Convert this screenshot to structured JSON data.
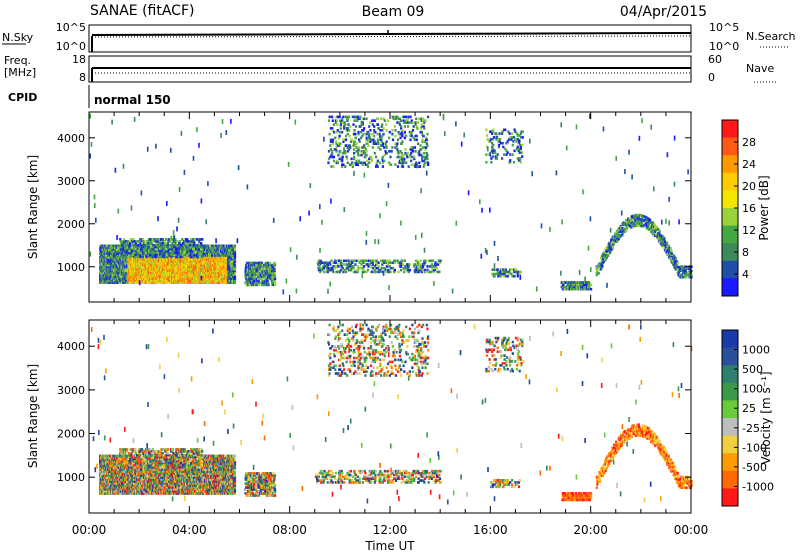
{
  "header": {
    "station": "SANAE (fitACF)",
    "beam": "Beam 09",
    "date": "04/Apr/2015"
  },
  "panels": {
    "nsky": {
      "label": "N.Sky",
      "left_ticks": [
        "10^5",
        "10^0"
      ],
      "right_ticks": [
        "10^5",
        "10^0"
      ],
      "right_label": "N.Search"
    },
    "freq": {
      "label_line1": "Freq.",
      "label_line2": "[MHz]",
      "left_ticks": [
        "18",
        "8"
      ],
      "right_ticks": [
        "60",
        "0"
      ],
      "right_label": "Nave"
    },
    "cpid": {
      "label": "CPID",
      "mode_text": "normal 150"
    }
  },
  "colorbars": {
    "power": {
      "title": "Power [dB]",
      "ticks": [
        "28",
        "24",
        "20",
        "16",
        "12",
        "8",
        "4"
      ],
      "colors": [
        "#ff1a1a",
        "#ff5a14",
        "#ff9a00",
        "#ffcc00",
        "#f2e600",
        "#9ad23a",
        "#44a844",
        "#3c8a5a",
        "#1f4fa8",
        "#1a1aff"
      ]
    },
    "velocity": {
      "title": "Velocity [m s⁻¹]",
      "ticks": [
        "1000",
        "500",
        "100",
        "25",
        "-25",
        "-100",
        "-500",
        "-1000"
      ],
      "colors": [
        "#1a3aa8",
        "#2a4f9c",
        "#2e7f6e",
        "#3a9a4a",
        "#6acb3a",
        "#bdbdbd",
        "#f0d040",
        "#ff9a00",
        "#ff6a00",
        "#ff1a1a"
      ]
    }
  },
  "chart_data": {
    "type": "heatmap",
    "x_axis": {
      "label": "Time UT",
      "range_hours": [
        0,
        24
      ],
      "ticks": [
        "00:00",
        "04:00",
        "08:00",
        "12:00",
        "16:00",
        "20:00",
        "00:00"
      ]
    },
    "y_axis": {
      "label": "Slant Range [km]",
      "range_km": [
        180,
        4600
      ],
      "ticks": [
        "1000",
        "2000",
        "3000",
        "4000"
      ]
    },
    "echo_regions": [
      {
        "name": "morning",
        "t0": 0.4,
        "t1": 5.8,
        "r0": 600,
        "r1": 1500,
        "density": 0.85
      },
      {
        "name": "morning-top",
        "t0": 1.2,
        "t1": 4.5,
        "r0": 1200,
        "r1": 1650,
        "density": 0.35
      },
      {
        "name": "dawn",
        "t0": 6.2,
        "t1": 7.4,
        "r0": 550,
        "r1": 1100,
        "density": 0.55
      },
      {
        "name": "midday-low",
        "t0": 9.0,
        "t1": 14.0,
        "r0": 850,
        "r1": 1150,
        "density": 0.22
      },
      {
        "name": "midday-high",
        "t0": 9.5,
        "t1": 13.5,
        "r0": 3300,
        "r1": 4500,
        "density": 0.12
      },
      {
        "name": "afternoon-high",
        "t0": 15.8,
        "t1": 17.3,
        "r0": 3400,
        "r1": 4200,
        "density": 0.12
      },
      {
        "name": "afternoon-low",
        "t0": 16.0,
        "t1": 17.2,
        "r0": 750,
        "r1": 950,
        "density": 0.35
      },
      {
        "name": "evening",
        "t0": 18.8,
        "t1": 20.0,
        "r0": 450,
        "r1": 650,
        "density": 0.6
      },
      {
        "name": "arc",
        "t0": 20.2,
        "t1": 24.0,
        "r0": 900,
        "r1": 2100,
        "density": 0.5,
        "arc": true
      }
    ]
  }
}
